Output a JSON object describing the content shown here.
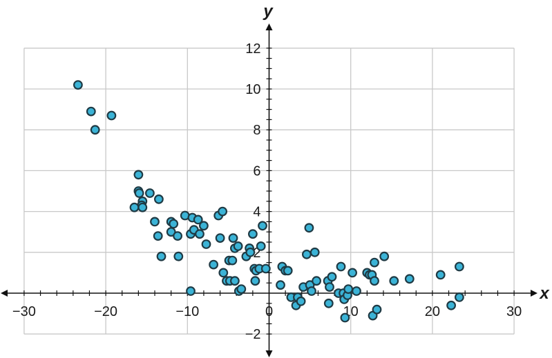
{
  "chart_data": {
    "type": "scatter",
    "xlabel": "x",
    "ylabel": "y",
    "xlim": [
      -30,
      30
    ],
    "ylim": [
      -2,
      12
    ],
    "x_ticks": [
      -30,
      -20,
      -10,
      0,
      10,
      20,
      30
    ],
    "y_ticks": [
      -2,
      2,
      4,
      6,
      8,
      10,
      12
    ],
    "x_tick_labels": [
      "−30",
      "−20",
      "−10",
      "0",
      "10",
      "20",
      "30"
    ],
    "y_tick_labels": [
      "−2",
      "2",
      "4",
      "6",
      "8",
      "10",
      "12"
    ],
    "grid": true,
    "marker_color": "#3bb3d6",
    "marker_edge_color": "#1f3a44",
    "series": [
      {
        "points": [
          [
            -23.4,
            10.2
          ],
          [
            -21.8,
            8.9
          ],
          [
            -21.3,
            8.0
          ],
          [
            -19.3,
            8.7
          ],
          [
            -16.0,
            5.8
          ],
          [
            -16.0,
            5.0
          ],
          [
            -15.9,
            4.9
          ],
          [
            -15.5,
            4.5
          ],
          [
            -15.6,
            4.3
          ],
          [
            -15.5,
            4.2
          ],
          [
            -16.5,
            4.2
          ],
          [
            -14.6,
            4.9
          ],
          [
            -13.5,
            4.6
          ],
          [
            -14.0,
            3.5
          ],
          [
            -13.6,
            2.8
          ],
          [
            -13.2,
            1.8
          ],
          [
            -12.0,
            3.5
          ],
          [
            -11.7,
            3.4
          ],
          [
            -12.0,
            3.0
          ],
          [
            -11.2,
            2.8
          ],
          [
            -11.1,
            1.8
          ],
          [
            -10.3,
            3.8
          ],
          [
            -9.6,
            2.9
          ],
          [
            -9.4,
            3.7
          ],
          [
            -9.2,
            3.1
          ],
          [
            -8.7,
            3.6
          ],
          [
            -8.5,
            2.9
          ],
          [
            -8.0,
            3.3
          ],
          [
            -7.7,
            2.4
          ],
          [
            -9.6,
            0.1
          ],
          [
            -6.8,
            1.4
          ],
          [
            -6.0,
            2.7
          ],
          [
            -6.2,
            3.8
          ],
          [
            -5.7,
            4.0
          ],
          [
            -5.6,
            1.0
          ],
          [
            -5.2,
            0.6
          ],
          [
            -4.9,
            1.6
          ],
          [
            -4.8,
            0.6
          ],
          [
            -4.5,
            1.6
          ],
          [
            -4.4,
            2.7
          ],
          [
            -4.2,
            2.2
          ],
          [
            -4.2,
            0.6
          ],
          [
            -3.8,
            2.3
          ],
          [
            -3.7,
            0.1
          ],
          [
            -3.4,
            0.2
          ],
          [
            -2.8,
            1.8
          ],
          [
            -2.4,
            2.2
          ],
          [
            -2.3,
            2.0
          ],
          [
            -2.0,
            2.9
          ],
          [
            -1.8,
            1.2
          ],
          [
            -1.7,
            0.6
          ],
          [
            -1.6,
            1.1
          ],
          [
            -1.2,
            1.2
          ],
          [
            -1.0,
            2.3
          ],
          [
            -0.8,
            3.3
          ],
          [
            -0.4,
            1.2
          ],
          [
            1.4,
            0.4
          ],
          [
            1.6,
            1.3
          ],
          [
            2.0,
            1.1
          ],
          [
            2.3,
            1.1
          ],
          [
            2.7,
            -0.2
          ],
          [
            3.3,
            -0.6
          ],
          [
            3.5,
            -0.2
          ],
          [
            3.9,
            -0.4
          ],
          [
            4.2,
            0.3
          ],
          [
            4.6,
            1.9
          ],
          [
            4.9,
            3.2
          ],
          [
            5.0,
            0.4
          ],
          [
            5.2,
            0.1
          ],
          [
            5.6,
            2.0
          ],
          [
            5.8,
            0.6
          ],
          [
            7.2,
            0.6
          ],
          [
            7.3,
            -0.5
          ],
          [
            7.4,
            0.3
          ],
          [
            7.7,
            0.8
          ],
          [
            8.5,
            0.0
          ],
          [
            8.8,
            1.3
          ],
          [
            9.1,
            0.0
          ],
          [
            9.2,
            -0.3
          ],
          [
            9.3,
            -1.2
          ],
          [
            9.6,
            -0.1
          ],
          [
            9.7,
            0.2
          ],
          [
            10.2,
            1.0
          ],
          [
            10.7,
            0.1
          ],
          [
            12.0,
            1.0
          ],
          [
            12.3,
            0.9
          ],
          [
            12.6,
            0.9
          ],
          [
            12.7,
            -1.1
          ],
          [
            12.9,
            1.5
          ],
          [
            12.9,
            0.6
          ],
          [
            13.2,
            -0.8
          ],
          [
            14.1,
            1.8
          ],
          [
            15.3,
            0.6
          ],
          [
            17.2,
            0.7
          ],
          [
            21.0,
            0.9
          ],
          [
            22.3,
            -0.6
          ],
          [
            23.3,
            1.3
          ],
          [
            23.3,
            -0.2
          ]
        ]
      }
    ]
  }
}
